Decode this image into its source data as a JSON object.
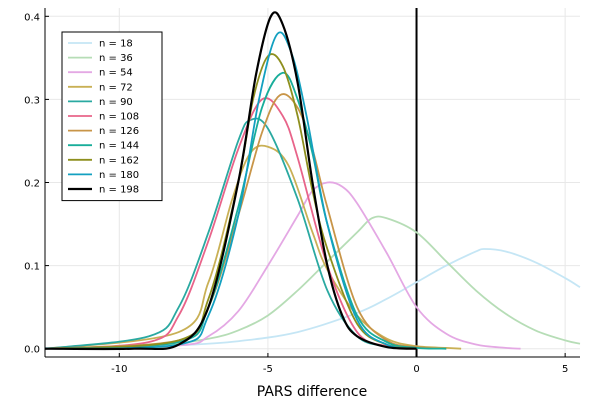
{
  "chart_data": {
    "type": "line",
    "title": "",
    "xlabel": "PARS difference",
    "ylabel": "",
    "xlim": [
      -12.5,
      5.5
    ],
    "ylim": [
      -0.01,
      0.41
    ],
    "xticks": [
      -10,
      -5,
      0,
      5
    ],
    "xtick_labels": [
      "-10",
      "-5",
      "0",
      "5"
    ],
    "yticks": [
      0.0,
      0.1,
      0.2,
      0.3,
      0.4
    ],
    "ytick_labels": [
      "0.0",
      "0.1",
      "0.2",
      "0.3",
      "0.4"
    ],
    "grid": true,
    "legend_position": "top-left",
    "vline": {
      "x": 0,
      "color": "#000000"
    },
    "series": [
      {
        "name": "n = 18",
        "color": "#c5e6f5",
        "x": [
          -12.5,
          -10,
          -8,
          -6,
          -4,
          -2,
          -1,
          0,
          1,
          2,
          2.3,
          3,
          4,
          5,
          5.5
        ],
        "y": [
          0.001,
          0.002,
          0.004,
          0.009,
          0.02,
          0.043,
          0.06,
          0.08,
          0.1,
          0.117,
          0.12,
          0.117,
          0.104,
          0.085,
          0.074
        ]
      },
      {
        "name": "n = 36",
        "color": "#b6ddb6",
        "x": [
          -12.5,
          -9,
          -7,
          -6,
          -5,
          -4,
          -3,
          -2,
          -1.5,
          -1,
          0,
          1,
          2,
          3,
          4,
          5,
          5.5
        ],
        "y": [
          0.0,
          0.003,
          0.012,
          0.022,
          0.04,
          0.07,
          0.105,
          0.14,
          0.157,
          0.157,
          0.14,
          0.105,
          0.07,
          0.042,
          0.022,
          0.01,
          0.006
        ]
      },
      {
        "name": "n = 54",
        "color": "#e4a8e4",
        "x": [
          -12.5,
          -8,
          -7,
          -6,
          -5,
          -4,
          -3.5,
          -3,
          -2.5,
          -2,
          -1,
          0,
          1,
          2,
          3,
          3.5
        ],
        "y": [
          0.0,
          0.004,
          0.015,
          0.045,
          0.1,
          0.16,
          0.19,
          0.2,
          0.195,
          0.175,
          0.115,
          0.05,
          0.018,
          0.005,
          0.001,
          0.0
        ]
      },
      {
        "name": "n = 72",
        "color": "#c9b055",
        "x": [
          -12.5,
          -8,
          -7,
          -6.2,
          -5.6,
          -5,
          -4.3,
          -3.5,
          -3,
          -2,
          -1,
          0,
          1,
          1.5
        ],
        "y": [
          0.0,
          0.02,
          0.08,
          0.18,
          0.235,
          0.243,
          0.22,
          0.14,
          0.095,
          0.04,
          0.012,
          0.003,
          0.001,
          0.0
        ]
      },
      {
        "name": "n = 90",
        "color": "#2aa9a1",
        "x": [
          -12.5,
          -9,
          -8,
          -7,
          -6,
          -5.6,
          -5,
          -4,
          -3,
          -2,
          -1,
          0
        ],
        "y": [
          0.0,
          0.015,
          0.05,
          0.14,
          0.25,
          0.275,
          0.265,
          0.18,
          0.07,
          0.015,
          0.003,
          0.0
        ]
      },
      {
        "name": "n = 108",
        "color": "#e8648a",
        "x": [
          -12.5,
          -9,
          -8,
          -7,
          -6,
          -5.2,
          -4.5,
          -4,
          -3,
          -2,
          -1,
          0
        ],
        "y": [
          0.0,
          0.008,
          0.04,
          0.13,
          0.24,
          0.3,
          0.28,
          0.23,
          0.1,
          0.02,
          0.003,
          0.0
        ]
      },
      {
        "name": "n = 126",
        "color": "#c89548",
        "x": [
          -12.5,
          -8,
          -7,
          -6,
          -5.2,
          -4.6,
          -4,
          -3.5,
          -3,
          -2,
          -1,
          0,
          1
        ],
        "y": [
          0.0,
          0.01,
          0.05,
          0.16,
          0.26,
          0.305,
          0.29,
          0.24,
          0.17,
          0.05,
          0.01,
          0.002,
          0.0
        ]
      },
      {
        "name": "n = 144",
        "color": "#18ad9a",
        "x": [
          -12.5,
          -8,
          -7,
          -6,
          -5.2,
          -4.5,
          -4,
          -3.5,
          -3,
          -2,
          -1,
          0,
          1
        ],
        "y": [
          0.0,
          0.008,
          0.05,
          0.17,
          0.29,
          0.332,
          0.3,
          0.235,
          0.15,
          0.04,
          0.008,
          0.001,
          0.0
        ]
      },
      {
        "name": "n = 162",
        "color": "#8e8f1e",
        "x": [
          -12.5,
          -8,
          -7,
          -6,
          -5.5,
          -5,
          -4.5,
          -4,
          -3.5,
          -3,
          -2,
          -1,
          0
        ],
        "y": [
          0.0,
          0.01,
          0.06,
          0.2,
          0.3,
          0.352,
          0.34,
          0.28,
          0.19,
          0.12,
          0.03,
          0.005,
          0.0
        ]
      },
      {
        "name": "n = 180",
        "color": "#13a0c0",
        "x": [
          -12.5,
          -8,
          -7,
          -6,
          -5.3,
          -4.7,
          -4.2,
          -3.7,
          -3,
          -2,
          -1,
          0
        ],
        "y": [
          0.0,
          0.005,
          0.04,
          0.16,
          0.3,
          0.378,
          0.355,
          0.28,
          0.15,
          0.035,
          0.005,
          0.0
        ]
      },
      {
        "name": "n = 198",
        "color": "#000000",
        "x": [
          -12.5,
          -9.5,
          -8,
          -7,
          -6,
          -5.4,
          -4.9,
          -4.5,
          -4,
          -3.5,
          -3,
          -2.5,
          -2,
          -1,
          0
        ],
        "y": [
          0.0,
          0.0,
          0.005,
          0.05,
          0.2,
          0.33,
          0.4,
          0.39,
          0.32,
          0.2,
          0.1,
          0.04,
          0.015,
          0.002,
          0.0
        ]
      }
    ]
  }
}
